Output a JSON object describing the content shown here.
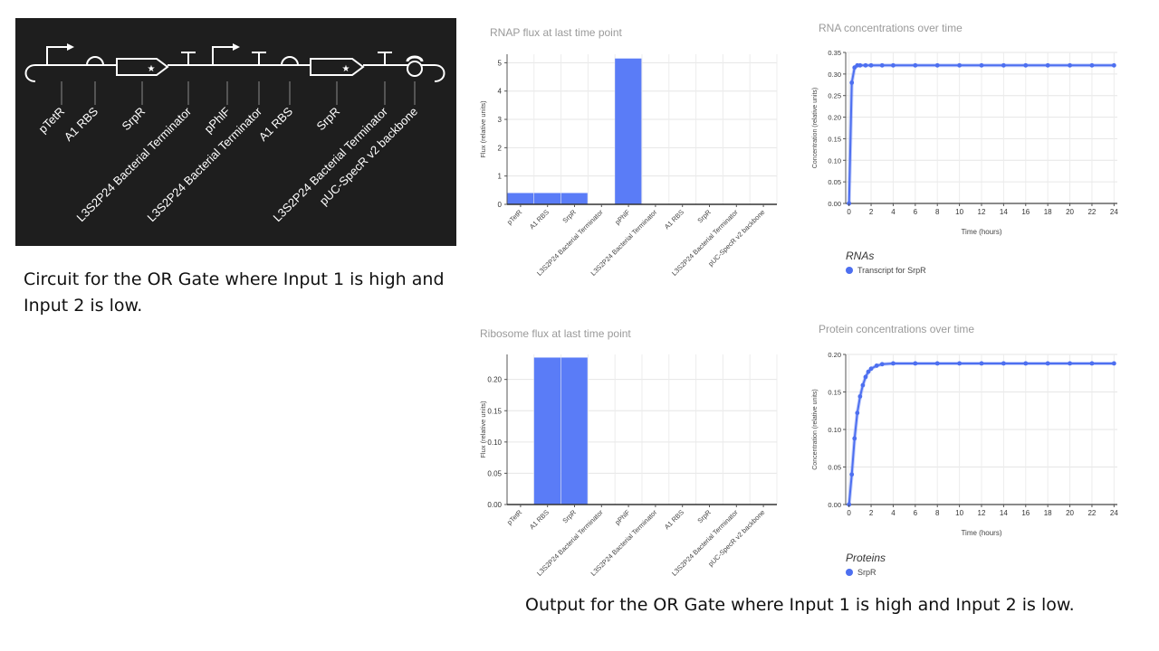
{
  "circuit": {
    "parts": [
      "pTetR",
      "A1 RBS",
      "SrpR",
      "L3S2P24 Bacterial Terminator",
      "pPhlF",
      "L3S2P24 Bacterial Terminator",
      "A1 RBS",
      "SrpR",
      "L3S2P24 Bacterial Terminator",
      "pUC-SpecR v2 backbone"
    ],
    "caption": "Circuit for the OR Gate where Input 1 is high and Input 2 is low."
  },
  "output_caption": "Output for the OR Gate where Input 1 is high and Input 2 is low.",
  "colors": {
    "bar": "#5a7cf7",
    "line": "#4d6ff0",
    "panel": "#1e1e1e"
  },
  "chart_data": [
    {
      "id": "rnap",
      "type": "bar",
      "title": "RNAP flux at last time point",
      "ylabel": "Flux (relative units)",
      "categories": [
        "pTetR",
        "A1 RBS",
        "SrpR",
        "L3S2P24 Bacterial Terminator",
        "pPhlF",
        "L3S2P24 Bacterial Terminator",
        "A1 RBS",
        "SrpR",
        "L3S2P24 Bacterial Terminator",
        "pUC-SpecR v2 backbone"
      ],
      "values": [
        0.4,
        0.4,
        0.4,
        0,
        5.15,
        0,
        0,
        0,
        0,
        0
      ],
      "ylim": [
        0,
        5.3
      ],
      "yticks": [
        0,
        1,
        2,
        3,
        4,
        5
      ],
      "grid": true
    },
    {
      "id": "ribo",
      "type": "bar",
      "title": "Ribosome flux at last time point",
      "ylabel": "Flux (relative units)",
      "categories": [
        "pTetR",
        "A1 RBS",
        "SrpR",
        "L3S2P24 Bacterial Terminator",
        "pPhlF",
        "L3S2P24 Bacterial Terminator",
        "A1 RBS",
        "SrpR",
        "L3S2P24 Bacterial Terminator",
        "pUC-SpecR v2 backbone"
      ],
      "values": [
        0,
        0.235,
        0.235,
        0,
        0,
        0,
        0,
        0,
        0,
        0
      ],
      "ylim": [
        0,
        0.24
      ],
      "yticks": [
        0,
        0.05,
        0.1,
        0.15,
        0.2
      ],
      "ytick_labels": [
        "0.00",
        "0.05",
        "0.10",
        "0.15",
        "0.20"
      ],
      "grid": true
    },
    {
      "id": "rna",
      "type": "line",
      "title": "RNA concentrations over time",
      "xlabel": "Time (hours)",
      "ylabel": "Concentration (relative units)",
      "xlim": [
        -0.3,
        24.3
      ],
      "ylim": [
        0,
        0.35
      ],
      "xticks": [
        0,
        2,
        4,
        6,
        8,
        10,
        12,
        14,
        16,
        18,
        20,
        22,
        24
      ],
      "yticks": [
        0,
        0.05,
        0.1,
        0.15,
        0.2,
        0.25,
        0.3,
        0.35
      ],
      "ytick_labels": [
        "0.00",
        "0.05",
        "0.10",
        "0.15",
        "0.20",
        "0.25",
        "0.30",
        "0.35"
      ],
      "grid": true,
      "legend_title": "RNAs",
      "series": [
        {
          "name": "Transcript for SrpR",
          "x": [
            0,
            0.25,
            0.5,
            0.75,
            1,
            1.5,
            2,
            3,
            4,
            6,
            8,
            10,
            12,
            14,
            16,
            18,
            20,
            22,
            24
          ],
          "y": [
            0,
            0.28,
            0.315,
            0.32,
            0.32,
            0.32,
            0.32,
            0.32,
            0.32,
            0.32,
            0.32,
            0.32,
            0.32,
            0.32,
            0.32,
            0.32,
            0.32,
            0.32,
            0.32
          ]
        }
      ]
    },
    {
      "id": "protein",
      "type": "line",
      "title": "Protein concentrations over time",
      "xlabel": "Time (hours)",
      "ylabel": "Concentration (relative units)",
      "xlim": [
        -0.3,
        24.3
      ],
      "ylim": [
        0,
        0.2
      ],
      "xticks": [
        0,
        2,
        4,
        6,
        8,
        10,
        12,
        14,
        16,
        18,
        20,
        22,
        24
      ],
      "yticks": [
        0,
        0.05,
        0.1,
        0.15,
        0.2
      ],
      "ytick_labels": [
        "0.00",
        "0.05",
        "0.10",
        "0.15",
        "0.20"
      ],
      "grid": true,
      "legend_title": "Proteins",
      "series": [
        {
          "name": "SrpR",
          "x": [
            0,
            0.25,
            0.5,
            0.75,
            1,
            1.25,
            1.5,
            1.75,
            2,
            2.5,
            3,
            4,
            6,
            8,
            10,
            12,
            14,
            16,
            18,
            20,
            22,
            24
          ],
          "y": [
            0,
            0.04,
            0.088,
            0.122,
            0.144,
            0.159,
            0.17,
            0.177,
            0.181,
            0.185,
            0.187,
            0.188,
            0.188,
            0.188,
            0.188,
            0.188,
            0.188,
            0.188,
            0.188,
            0.188,
            0.188,
            0.188
          ]
        }
      ]
    }
  ]
}
